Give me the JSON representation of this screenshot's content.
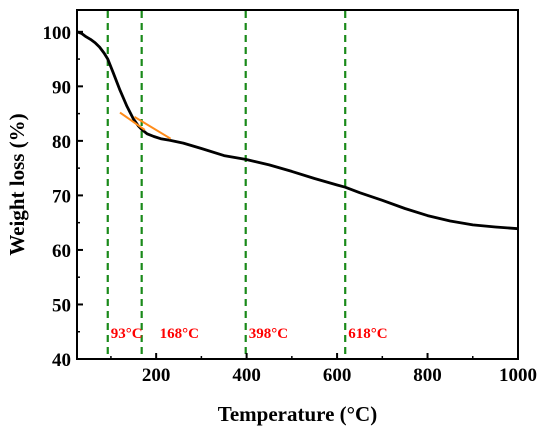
{
  "chart_data": {
    "type": "line",
    "xlabel": "Temperature (°C)",
    "ylabel": "Weight loss (%)",
    "xlim": [
      25,
      1000
    ],
    "ylim": [
      40,
      104
    ],
    "x_ticks": [
      200,
      400,
      600,
      800,
      1000
    ],
    "y_ticks": [
      40,
      50,
      60,
      70,
      80,
      90,
      100
    ],
    "grid": false,
    "colors": {
      "curve": "#000000",
      "tangent": "#ff8c1a",
      "marker_line": "#1a8a1a",
      "annotation": "#ff0000"
    },
    "series": [
      {
        "x": [
          25,
          35,
          45,
          55,
          65,
          75,
          85,
          93,
          105,
          120,
          135,
          150,
          160,
          168,
          180,
          195,
          210,
          230,
          260,
          300,
          350,
          398,
          450,
          500,
          550,
          600,
          618,
          650,
          700,
          750,
          800,
          850,
          900,
          950,
          1000
        ],
        "y": [
          100,
          99.7,
          99.1,
          98.6,
          98.0,
          97.2,
          96.1,
          95.0,
          92.5,
          89.3,
          86.4,
          84.0,
          82.8,
          82.1,
          81.3,
          80.8,
          80.4,
          80.1,
          79.6,
          78.6,
          77.3,
          76.6,
          75.6,
          74.4,
          73.1,
          71.9,
          71.5,
          70.5,
          69.1,
          67.6,
          66.3,
          65.3,
          64.6,
          64.2,
          63.9
        ]
      }
    ],
    "tangent_lines": [
      {
        "x": [
          120,
          175
        ],
        "y": [
          85.2,
          82.0
        ]
      },
      {
        "x": [
          152,
          232
        ],
        "y": [
          84.4,
          80.4
        ]
      }
    ],
    "vertical_markers": [
      {
        "x": 93,
        "label": "93°C"
      },
      {
        "x": 168,
        "label": "168°C"
      },
      {
        "x": 398,
        "label": "398°C"
      },
      {
        "x": 618,
        "label": "618°C"
      }
    ]
  }
}
